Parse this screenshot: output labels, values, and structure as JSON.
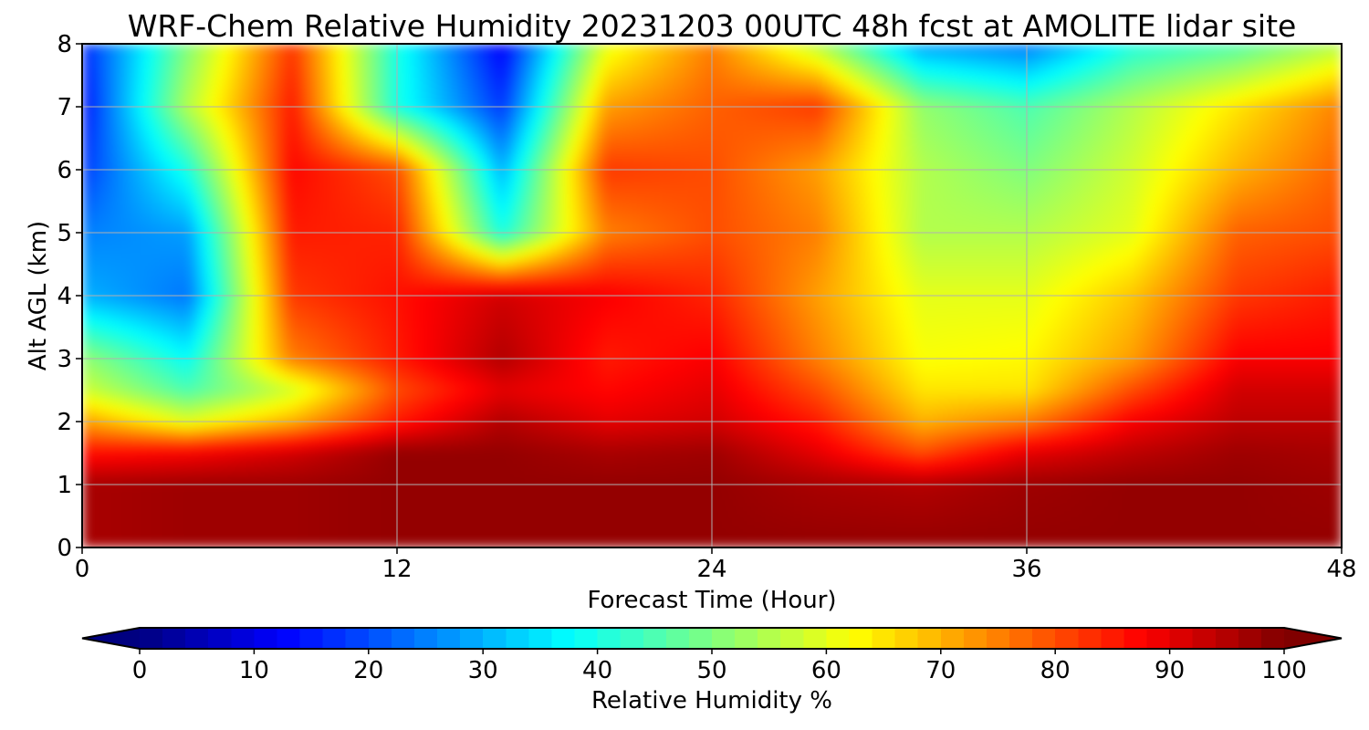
{
  "chart_data": {
    "type": "heatmap",
    "title": "WRF-Chem Relative Humidity 20231203 00UTC 48h fcst at AMOLITE lidar site",
    "xlabel": "Forecast Time (Hour)",
    "ylabel": "Alt AGL (km)",
    "xlim": [
      0,
      48
    ],
    "ylim": [
      0,
      8
    ],
    "x_ticks": [
      "0",
      "12",
      "24",
      "36",
      "48"
    ],
    "y_ticks": [
      "0",
      "1",
      "2",
      "3",
      "4",
      "5",
      "6",
      "7",
      "8"
    ],
    "grid": true,
    "colorbar": {
      "label": "Relative Humidity %",
      "range": [
        0,
        100
      ],
      "ticks": [
        "0",
        "10",
        "20",
        "30",
        "40",
        "50",
        "60",
        "70",
        "80",
        "90",
        "100"
      ],
      "colormap": "jet",
      "extend": "both",
      "orientation": "horizontal",
      "placement": "bottom"
    },
    "x": [
      0,
      4,
      8,
      12,
      16,
      20,
      24,
      28,
      32,
      36,
      40,
      44,
      48
    ],
    "y": [
      0,
      1,
      1.5,
      2,
      2.5,
      3,
      4,
      5,
      6,
      7,
      8
    ],
    "z": [
      [
        96,
        97,
        97,
        98,
        98,
        98,
        98,
        98,
        98,
        98,
        98,
        98,
        98
      ],
      [
        96,
        97,
        97,
        98,
        98,
        98,
        98,
        96,
        95,
        97,
        98,
        98,
        97
      ],
      [
        86,
        88,
        92,
        98,
        98,
        96,
        97,
        90,
        80,
        90,
        94,
        97,
        96
      ],
      [
        72,
        60,
        70,
        85,
        95,
        90,
        92,
        85,
        70,
        75,
        88,
        94,
        94
      ],
      [
        58,
        45,
        58,
        80,
        90,
        87,
        90,
        80,
        65,
        65,
        80,
        92,
        92
      ],
      [
        52,
        38,
        75,
        85,
        95,
        85,
        88,
        75,
        62,
        63,
        72,
        88,
        88
      ],
      [
        30,
        24,
        82,
        86,
        92,
        88,
        84,
        72,
        60,
        60,
        68,
        82,
        85
      ],
      [
        25,
        28,
        85,
        84,
        40,
        75,
        80,
        75,
        55,
        55,
        60,
        78,
        80
      ],
      [
        18,
        40,
        87,
        80,
        30,
        82,
        80,
        72,
        55,
        50,
        58,
        70,
        78
      ],
      [
        14,
        55,
        85,
        40,
        18,
        72,
        78,
        82,
        52,
        45,
        55,
        65,
        75
      ],
      [
        16,
        50,
        82,
        40,
        12,
        60,
        75,
        55,
        28,
        24,
        40,
        45,
        55
      ]
    ]
  }
}
